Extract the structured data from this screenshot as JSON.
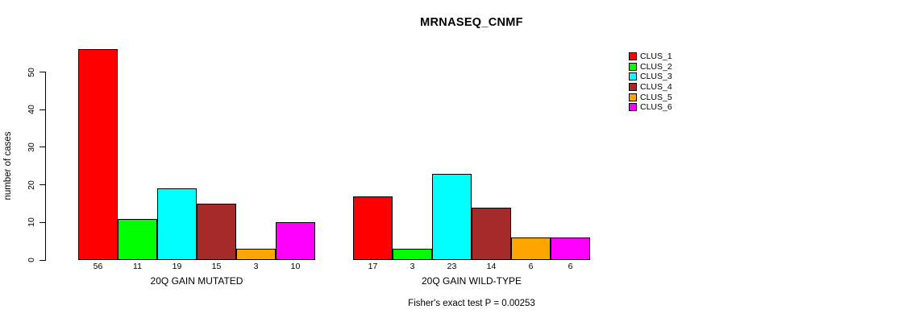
{
  "chart_data": {
    "type": "bar",
    "title": "MRNASEQ_CNMF",
    "ylabel": "number of cases",
    "footer": "Fisher's exact test P = 0.00253",
    "ylim": [
      0,
      56
    ],
    "yticks": [
      0,
      10,
      20,
      30,
      40,
      50
    ],
    "grid": false,
    "legend_position": "right",
    "legend": [
      {
        "name": "CLUS_1",
        "color": "#FF0000"
      },
      {
        "name": "CLUS_2",
        "color": "#00FF00"
      },
      {
        "name": "CLUS_3",
        "color": "#00FFFF"
      },
      {
        "name": "CLUS_4",
        "color": "#A52A2A"
      },
      {
        "name": "CLUS_5",
        "color": "#FFA500"
      },
      {
        "name": "CLUS_6",
        "color": "#FF00FF"
      }
    ],
    "groups": [
      {
        "label": "20Q GAIN MUTATED",
        "values": [
          56,
          11,
          19,
          15,
          3,
          10
        ]
      },
      {
        "label": "20Q GAIN WILD-TYPE",
        "values": [
          17,
          3,
          23,
          14,
          6,
          6
        ]
      }
    ]
  }
}
